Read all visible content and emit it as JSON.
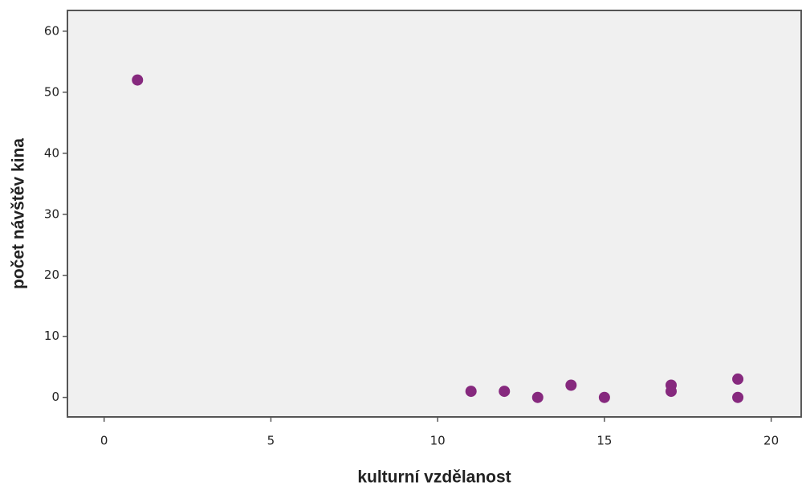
{
  "chart_data": {
    "type": "scatter",
    "x_label": "kulturní vzdělanost",
    "y_label": "počet návštěv kina",
    "series": [
      {
        "color": "#86297e",
        "x": [
          1,
          11,
          12,
          13,
          14,
          15,
          17,
          17,
          19,
          19
        ],
        "values": [
          52,
          1,
          1,
          0,
          2,
          0,
          2,
          1,
          3,
          0
        ]
      }
    ],
    "xlim": [
      -1.1,
      20.9
    ],
    "xticks": [
      0,
      5,
      10,
      15,
      20
    ],
    "ylim": [
      -3.2,
      63.4
    ],
    "yticks": [
      0,
      10,
      20,
      30,
      40,
      50,
      60
    ],
    "grid": false
  }
}
